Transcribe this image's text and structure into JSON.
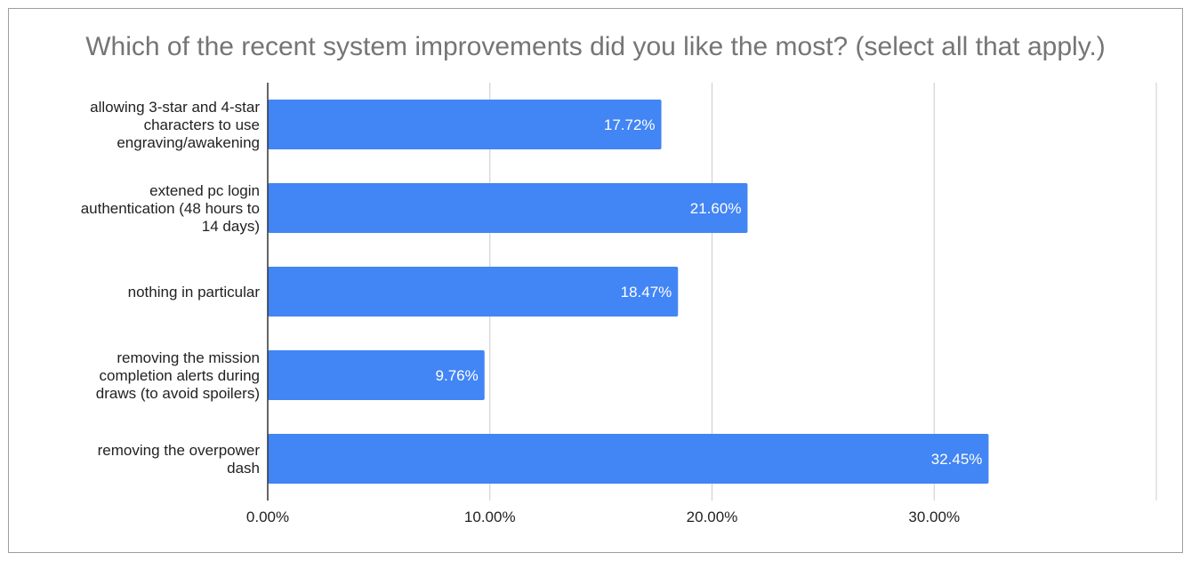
{
  "chart_data": {
    "type": "bar",
    "orientation": "horizontal",
    "title": "Which of the recent system improvements did you like the most? (select all that apply.)",
    "categories": [
      [
        "allowing 3-star and 4-star",
        "characters to use",
        "engraving/awakening"
      ],
      [
        "extened pc login",
        "authentication (48 hours to",
        "14 days)"
      ],
      [
        "nothing in particular"
      ],
      [
        "removing the mission",
        "completion alerts during",
        "draws (to avoid spoilers)"
      ],
      [
        "removing the overpower",
        "dash"
      ]
    ],
    "values": [
      17.72,
      21.6,
      18.47,
      9.76,
      32.45
    ],
    "data_labels": [
      "17.72%",
      "21.60%",
      "18.47%",
      "9.76%",
      "32.45%"
    ],
    "xlim": [
      0,
      40
    ],
    "x_ticks": [
      0,
      10,
      20,
      30
    ],
    "x_tick_labels": [
      "0.00%",
      "10.00%",
      "20.00%",
      "30.00%"
    ],
    "grid": true,
    "bar_color": "#4285f4",
    "title_color": "#757575"
  }
}
